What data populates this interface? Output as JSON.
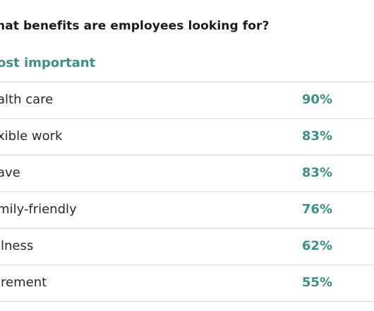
{
  "title": "hat benefits are employees looking for?",
  "subtitle": "ost important",
  "accent_color": "#3d8f87",
  "rows": [
    {
      "label": "alth care",
      "value": "90%"
    },
    {
      "label": "xible work",
      "value": "83%"
    },
    {
      "label": "ave",
      "value": "83%"
    },
    {
      "label": "mily-friendly",
      "value": "76%"
    },
    {
      "label": "llness",
      "value": "62%"
    },
    {
      "label": "irement",
      "value": "55%"
    }
  ]
}
